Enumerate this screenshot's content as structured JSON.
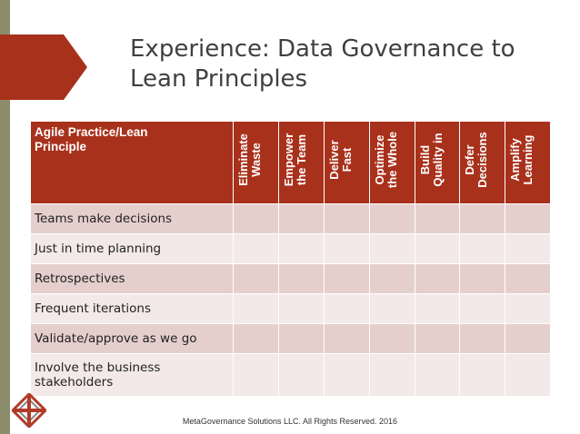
{
  "slide": {
    "title_line1": "Experience: Data Governance to",
    "title_line2": "Lean Principles",
    "footer": "MetaGovernance Solutions LLC. All Rights Reserved. 2016"
  },
  "table": {
    "corner_line1": "Agile Practice/Lean",
    "corner_line2": "Principle",
    "columns": [
      {
        "line1": "Eliminate",
        "line2": "Waste"
      },
      {
        "line1": "Empower",
        "line2": "the Team"
      },
      {
        "line1": "Deliver",
        "line2": "Fast"
      },
      {
        "line1": "Optimize",
        "line2": "the Whole"
      },
      {
        "line1": "Build",
        "line2": "Quality in"
      },
      {
        "line1": "Defer",
        "line2": "Decisions"
      },
      {
        "line1": "Amplify",
        "line2": "Learning"
      }
    ],
    "rows": [
      {
        "line1": "Teams make decisions",
        "line2": ""
      },
      {
        "line1": "Just in time planning",
        "line2": ""
      },
      {
        "line1": "Retrospectives",
        "line2": ""
      },
      {
        "line1": "Frequent iterations",
        "line2": ""
      },
      {
        "line1": "Validate/approve as we go",
        "line2": ""
      },
      {
        "line1": "Involve the business",
        "line2": "stakeholders"
      }
    ]
  },
  "colors": {
    "header_bg": "#a8311c",
    "row_odd": "#e5cfcd",
    "row_even": "#f2e9e8",
    "sidebar": "#8c8c6c",
    "arrow": "#a8311c"
  }
}
